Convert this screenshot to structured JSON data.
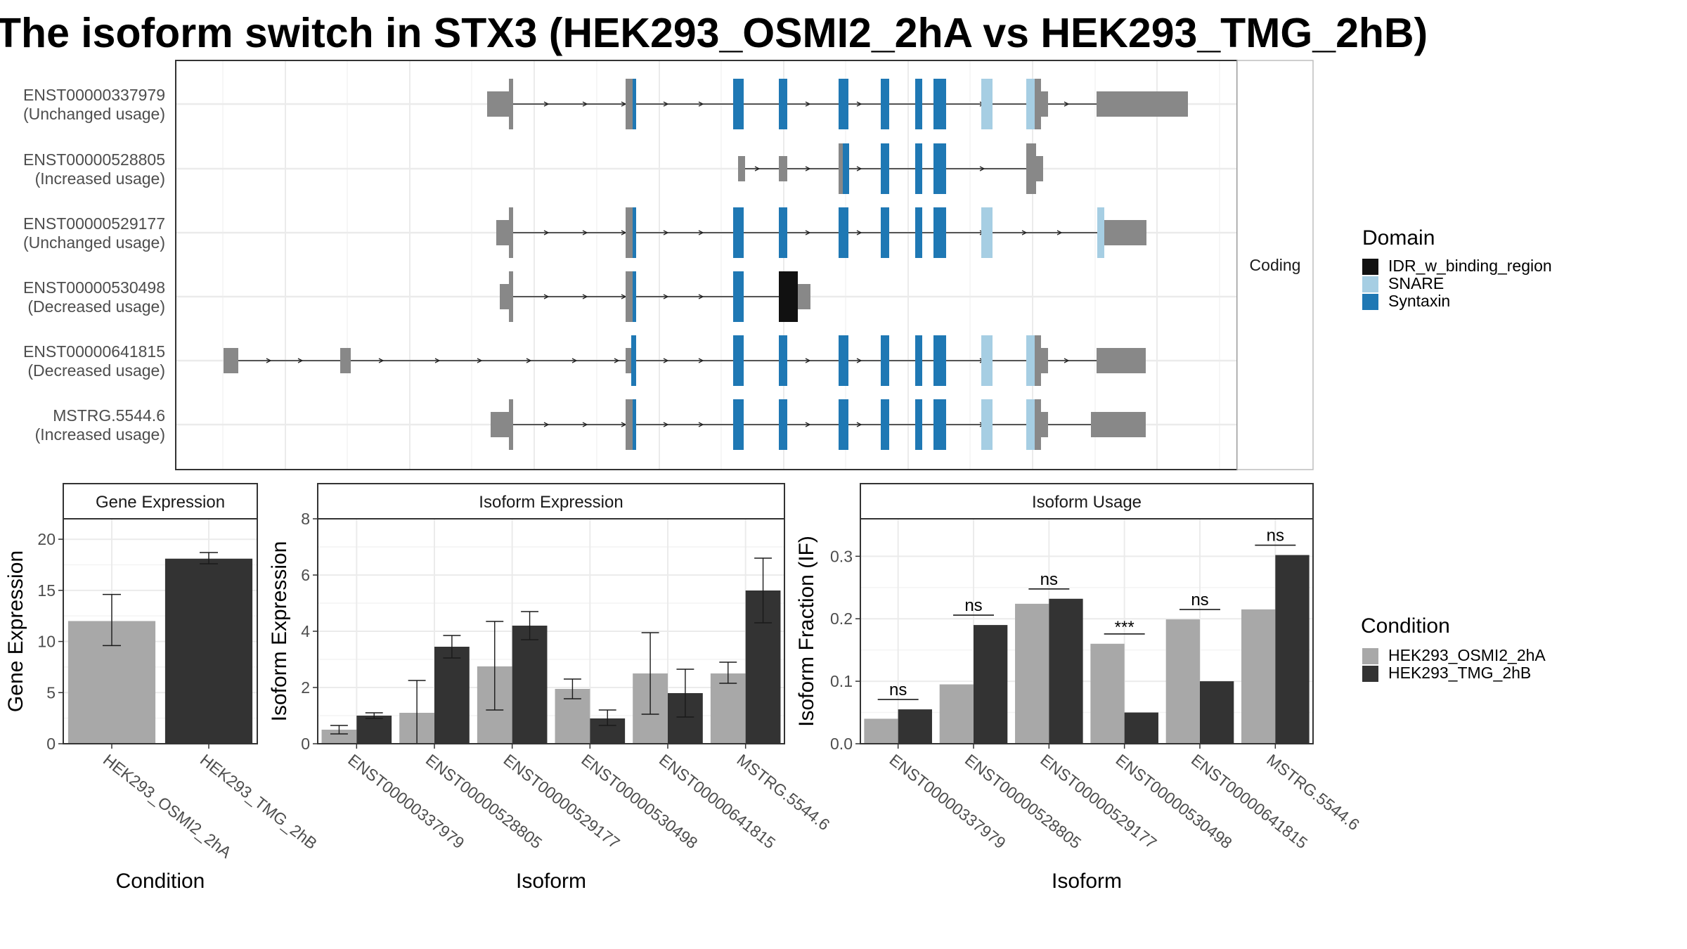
{
  "title": "The isoform switch in STX3 (HEK293_OSMI2_2hA vs HEK293_TMG_2hB)",
  "colors": {
    "condition_A": "#a8a8a8",
    "condition_B": "#333333",
    "exon_non_domain": "#888888",
    "IDR_w_binding_region": "#111111",
    "SNARE": "#a6cee3",
    "Syntaxin": "#1f78b4",
    "intron_line": "#222222"
  },
  "structure_panel": {
    "facet_label": "Coding",
    "transcripts": [
      {
        "id": "ENST00000337979",
        "usage": "(Unchanged usage)"
      },
      {
        "id": "ENST00000528805",
        "usage": "(Increased usage)"
      },
      {
        "id": "ENST00000529177",
        "usage": "(Unchanged usage)"
      },
      {
        "id": "ENST00000530498",
        "usage": "(Decreased usage)"
      },
      {
        "id": "ENST00000641815",
        "usage": "(Decreased usage)"
      },
      {
        "id": "MSTRG.5544.6",
        "usage": "(Increased usage)"
      }
    ]
  },
  "legends": {
    "domain": {
      "title": "Domain",
      "items": [
        {
          "label": "IDR_w_binding_region",
          "color": "#111111"
        },
        {
          "label": "SNARE",
          "color": "#a6cee3"
        },
        {
          "label": "Syntaxin",
          "color": "#1f78b4"
        }
      ]
    },
    "condition": {
      "title": "Condition",
      "items": [
        {
          "label": "HEK293_OSMI2_2hA",
          "color": "#a8a8a8"
        },
        {
          "label": "HEK293_TMG_2hB",
          "color": "#333333"
        }
      ]
    }
  },
  "chart_data": [
    {
      "type": "bar",
      "title": "Gene Expression",
      "xlabel": "Condition",
      "ylabel": "Gene Expression",
      "categories": [
        "HEK293_OSMI2_2hA",
        "HEK293_TMG_2hB"
      ],
      "values": [
        12.0,
        18.1
      ],
      "error_low": [
        9.6,
        17.6
      ],
      "error_high": [
        14.6,
        18.7
      ],
      "ylim": [
        0,
        22
      ],
      "yticks": [
        0,
        5,
        10,
        15,
        20
      ]
    },
    {
      "type": "bar",
      "title": "Isoform Expression",
      "xlabel": "Isoform",
      "ylabel": "Isoform Expression",
      "categories": [
        "ENST00000337979",
        "ENST00000528805",
        "ENST00000529177",
        "ENST00000530498",
        "ENST00000641815",
        "MSTRG.5544.6"
      ],
      "series": [
        {
          "name": "HEK293_OSMI2_2hA",
          "values": [
            0.5,
            1.1,
            2.75,
            1.95,
            2.5,
            2.5
          ],
          "error_low": [
            0.35,
            0.0,
            1.2,
            1.6,
            1.05,
            2.15
          ],
          "error_high": [
            0.65,
            2.25,
            4.35,
            2.3,
            3.95,
            2.9
          ]
        },
        {
          "name": "HEK293_TMG_2hB",
          "values": [
            1.0,
            3.45,
            4.2,
            0.9,
            1.8,
            5.45
          ],
          "error_low": [
            0.9,
            3.05,
            3.7,
            0.65,
            0.95,
            4.3
          ],
          "error_high": [
            1.1,
            3.85,
            4.7,
            1.2,
            2.65,
            6.6
          ]
        }
      ],
      "ylim": [
        0,
        8
      ],
      "yticks": [
        0,
        2,
        4,
        6,
        8
      ]
    },
    {
      "type": "bar",
      "title": "Isoform Usage",
      "xlabel": "Isoform",
      "ylabel": "Isoform Fraction (IF)",
      "categories": [
        "ENST00000337979",
        "ENST00000528805",
        "ENST00000529177",
        "ENST00000530498",
        "ENST00000641815",
        "MSTRG.5544.6"
      ],
      "series": [
        {
          "name": "HEK293_OSMI2_2hA",
          "values": [
            0.04,
            0.095,
            0.224,
            0.16,
            0.199,
            0.215
          ]
        },
        {
          "name": "HEK293_TMG_2hB",
          "values": [
            0.055,
            0.19,
            0.232,
            0.05,
            0.1,
            0.302
          ]
        }
      ],
      "significance": [
        "ns",
        "ns",
        "ns",
        "***",
        "ns",
        "ns"
      ],
      "ylim": [
        0,
        0.36
      ],
      "yticks": [
        0.0,
        0.1,
        0.2,
        0.3
      ],
      "ytick_labels": [
        "0.0",
        "0.1",
        "0.2",
        "0.3"
      ]
    }
  ]
}
